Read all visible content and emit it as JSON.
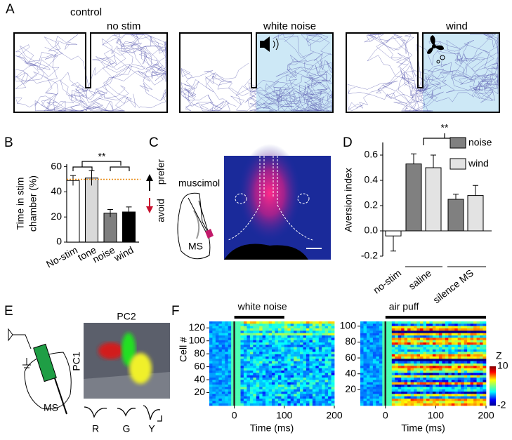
{
  "panel_labels": {
    "a": "A",
    "b": "B",
    "c": "C",
    "d": "D",
    "e": "E",
    "f": "F"
  },
  "panel_a": {
    "group": "control",
    "arenas": [
      "no stim",
      "white noise",
      "wind"
    ]
  },
  "chart_data": [
    {
      "type": "bar",
      "ylabel": [
        "Time in stim",
        "chamber (%)"
      ],
      "categories": [
        "No-stim",
        "tone",
        "noise",
        "wind"
      ],
      "values": [
        49,
        51,
        23,
        24
      ],
      "errors": [
        4,
        6,
        3,
        4
      ],
      "colors": [
        "#ffffff",
        "#d9d9d9",
        "#7f7f7f",
        "#000000"
      ],
      "ylim": [
        0,
        62
      ],
      "yticks": [
        0,
        20,
        40,
        60
      ],
      "reference": 50,
      "reference_color": "#e8870e",
      "significance": "**",
      "annotations": [
        "prefer",
        "avoid"
      ]
    },
    {
      "type": "grouped-bar",
      "ylabel": "Aversion index",
      "categories": [
        "no-stim",
        "saline",
        "silence MS"
      ],
      "series": [
        {
          "color": "#ffffff",
          "values": [
            -0.04,
            null,
            null
          ],
          "errors": [
            0.12,
            null,
            null
          ]
        },
        {
          "name": "noise",
          "color": "#808080",
          "values": [
            null,
            0.53,
            0.25
          ],
          "errors": [
            null,
            0.08,
            0.04
          ]
        },
        {
          "name": "wind",
          "color": "#e3e3e3",
          "values": [
            null,
            0.5,
            0.28
          ],
          "errors": [
            null,
            0.1,
            0.08
          ]
        }
      ],
      "ylim": [
        -0.2,
        0.7
      ],
      "yticks": [
        -0.2,
        {
          "value": 0,
          "label": "0.0"
        },
        0.2,
        0.4,
        0.6
      ],
      "significance": "**"
    }
  ],
  "panel_c": {
    "drug": "muscimol",
    "region": "MS"
  },
  "panel_e": {
    "pc_x": "PC2",
    "pc_y": "PC1",
    "region": "MS",
    "units": [
      "R",
      "G",
      "Y"
    ]
  },
  "panel_f": {
    "heatmaps": [
      {
        "title": "white noise",
        "ylabel": "Cell #",
        "xlabel": "Time (ms)",
        "stim": [
          0,
          100
        ],
        "xlim": [
          -50,
          200
        ],
        "xticks": [
          0,
          100,
          200
        ],
        "ylim": [
          0,
          130
        ],
        "yticks": [
          20,
          40,
          60,
          80,
          100,
          120
        ]
      },
      {
        "title": "air puff",
        "xlabel": "Time (ms)",
        "stim": [
          0,
          200
        ],
        "xlim": [
          -50,
          200
        ],
        "xticks": [
          0,
          100,
          200
        ],
        "ylim": [
          0,
          106
        ],
        "yticks": [
          20,
          40,
          60,
          80,
          100
        ]
      }
    ],
    "colorbar": {
      "label": "Z",
      "ticks": [
        10,
        -2
      ]
    }
  }
}
